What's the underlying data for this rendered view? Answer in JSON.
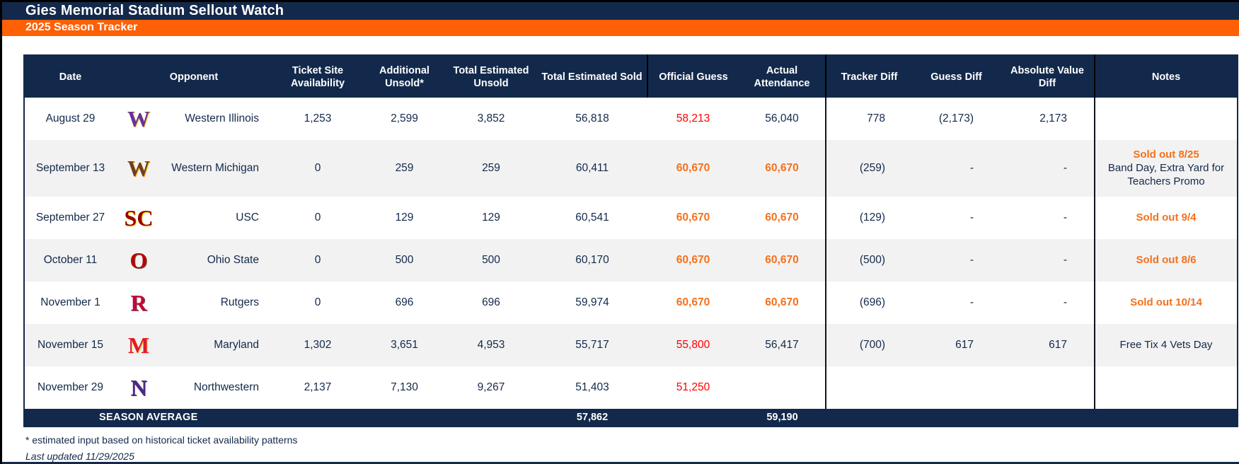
{
  "title": "Gies Memorial Stadium Sellout Watch",
  "subtitle": "2025 Season Tracker",
  "colors": {
    "navy": "#13294B",
    "banner_orange": "#FF5F05",
    "soldout_orange": "#F4711C",
    "alert_red": "#FF0000",
    "row_alt_gray": "#F2F2F2"
  },
  "table": {
    "columns": [
      "Date",
      "Opponent",
      "Ticket Site Availability",
      "Additional Unsold*",
      "Total Estimated Unsold",
      "Total Estimated Sold",
      "Official Guess",
      "Actual Attendance",
      "Tracker Diff",
      "Guess Diff",
      "Absolute Value Diff",
      "Notes"
    ],
    "rows": [
      {
        "date": "August 29",
        "opponent": "Western Illinois",
        "logo": {
          "name": "western-illinois-leathernecks-logo",
          "text": "W",
          "color": "#663399",
          "accent": "#FFC72C"
        },
        "availability": "1,253",
        "additional_unsold": "2,599",
        "total_unsold": "3,852",
        "total_sold": "56,818",
        "official_guess": {
          "value": "58,213",
          "style": "red"
        },
        "attendance": {
          "value": "56,040",
          "style": ""
        },
        "tracker_diff": "778",
        "guess_diff": "(2,173)",
        "abs_diff": "2,173",
        "notes": []
      },
      {
        "date": "September 13",
        "opponent": "Western Michigan",
        "logo": {
          "name": "western-michigan-broncos-logo",
          "text": "W",
          "color": "#6C4023",
          "accent": "#FFAE00"
        },
        "availability": "0",
        "additional_unsold": "259",
        "total_unsold": "259",
        "total_sold": "60,411",
        "official_guess": {
          "value": "60,670",
          "style": "soldout"
        },
        "attendance": {
          "value": "60,670",
          "style": "soldout"
        },
        "tracker_diff": "(259)",
        "guess_diff": "-",
        "abs_diff": "-",
        "notes": [
          {
            "text": "Sold out 8/25",
            "style": "soldout"
          },
          {
            "text": "Band Day, Extra Yard for Teachers Promo",
            "style": ""
          }
        ]
      },
      {
        "date": "September 27",
        "opponent": "USC",
        "logo": {
          "name": "usc-trojans-logo",
          "text": "SC",
          "color": "#990000",
          "accent": "#FFCC00"
        },
        "availability": "0",
        "additional_unsold": "129",
        "total_unsold": "129",
        "total_sold": "60,541",
        "official_guess": {
          "value": "60,670",
          "style": "soldout"
        },
        "attendance": {
          "value": "60,670",
          "style": "soldout"
        },
        "tracker_diff": "(129)",
        "guess_diff": "-",
        "abs_diff": "-",
        "notes": [
          {
            "text": "Sold out 9/4",
            "style": "soldout"
          }
        ]
      },
      {
        "date": "October 11",
        "opponent": "Ohio State",
        "logo": {
          "name": "ohio-state-buckeyes-logo",
          "text": "O",
          "color": "#BB0000",
          "accent": "#666666"
        },
        "availability": "0",
        "additional_unsold": "500",
        "total_unsold": "500",
        "total_sold": "60,170",
        "official_guess": {
          "value": "60,670",
          "style": "soldout"
        },
        "attendance": {
          "value": "60,670",
          "style": "soldout"
        },
        "tracker_diff": "(500)",
        "guess_diff": "-",
        "abs_diff": "-",
        "notes": [
          {
            "text": "Sold out 8/6",
            "style": "soldout"
          }
        ]
      },
      {
        "date": "November 1",
        "opponent": "Rutgers",
        "logo": {
          "name": "rutgers-scarlet-knights-logo",
          "text": "R",
          "color": "#CC0033",
          "accent": "#5F6A72"
        },
        "availability": "0",
        "additional_unsold": "696",
        "total_unsold": "696",
        "total_sold": "59,974",
        "official_guess": {
          "value": "60,670",
          "style": "soldout"
        },
        "attendance": {
          "value": "60,670",
          "style": "soldout"
        },
        "tracker_diff": "(696)",
        "guess_diff": "-",
        "abs_diff": "-",
        "notes": [
          {
            "text": "Sold out 10/14",
            "style": "soldout"
          }
        ]
      },
      {
        "date": "November 15",
        "opponent": "Maryland",
        "logo": {
          "name": "maryland-terrapins-logo",
          "text": "M",
          "color": "#E21833",
          "accent": "#FFD520"
        },
        "availability": "1,302",
        "additional_unsold": "3,651",
        "total_unsold": "4,953",
        "total_sold": "55,717",
        "official_guess": {
          "value": "55,800",
          "style": "red"
        },
        "attendance": {
          "value": "56,417",
          "style": ""
        },
        "tracker_diff": "(700)",
        "guess_diff": "617",
        "abs_diff": "617",
        "notes": [
          {
            "text": "Free Tix 4 Vets Day",
            "style": ""
          }
        ]
      },
      {
        "date": "November 29",
        "opponent": "Northwestern",
        "logo": {
          "name": "northwestern-wildcats-logo",
          "text": "N",
          "color": "#4E2A84",
          "accent": "#4E2A84"
        },
        "availability": "2,137",
        "additional_unsold": "7,130",
        "total_unsold": "9,267",
        "total_sold": "51,403",
        "official_guess": {
          "value": "51,250",
          "style": "red"
        },
        "attendance": {
          "value": "",
          "style": ""
        },
        "tracker_diff": "",
        "guess_diff": "",
        "abs_diff": "",
        "notes": []
      }
    ],
    "footer": {
      "label": "SEASON AVERAGE",
      "total_sold": "57,862",
      "attendance": "59,190"
    }
  },
  "footnotes": [
    "* estimated input based on historical ticket availability patterns",
    "Last updated 11/29/2025"
  ]
}
